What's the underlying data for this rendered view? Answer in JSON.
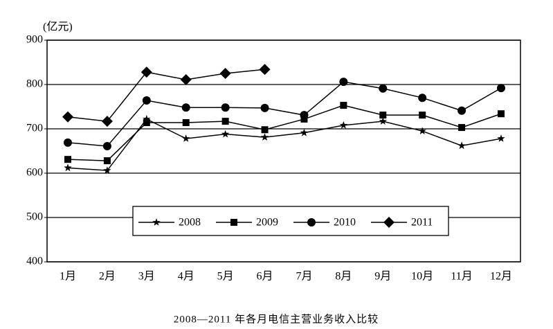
{
  "chart_data": {
    "type": "line",
    "title": "2008—2011 年各月电信主营业务收入比较",
    "y_label": "(亿元)",
    "categories": [
      "1月",
      "2月",
      "3月",
      "4月",
      "5月",
      "6月",
      "7月",
      "8月",
      "9月",
      "10月",
      "11月",
      "12月"
    ],
    "series": [
      {
        "name": "2008",
        "color": "#000000",
        "marker": "star",
        "values": [
          612,
          606,
          722,
          678,
          688,
          681,
          691,
          708,
          717,
          695,
          662,
          678
        ]
      },
      {
        "name": "2009",
        "color": "#000000",
        "marker": "square",
        "values": [
          631,
          628,
          714,
          714,
          717,
          698,
          722,
          753,
          731,
          731,
          703,
          734
        ]
      },
      {
        "name": "2010",
        "color": "#000000",
        "marker": "circle",
        "values": [
          669,
          661,
          764,
          748,
          748,
          747,
          731,
          806,
          791,
          770,
          741,
          792
        ]
      },
      {
        "name": "2011",
        "color": "#000000",
        "marker": "diamond",
        "values": [
          727,
          717,
          828,
          811,
          825,
          834,
          null,
          null,
          null,
          null,
          null,
          null
        ]
      }
    ],
    "ylim": [
      400,
      900
    ],
    "yticks": [
      400,
      500,
      600,
      700,
      800,
      900
    ],
    "grid": true,
    "legend": "bottom"
  }
}
